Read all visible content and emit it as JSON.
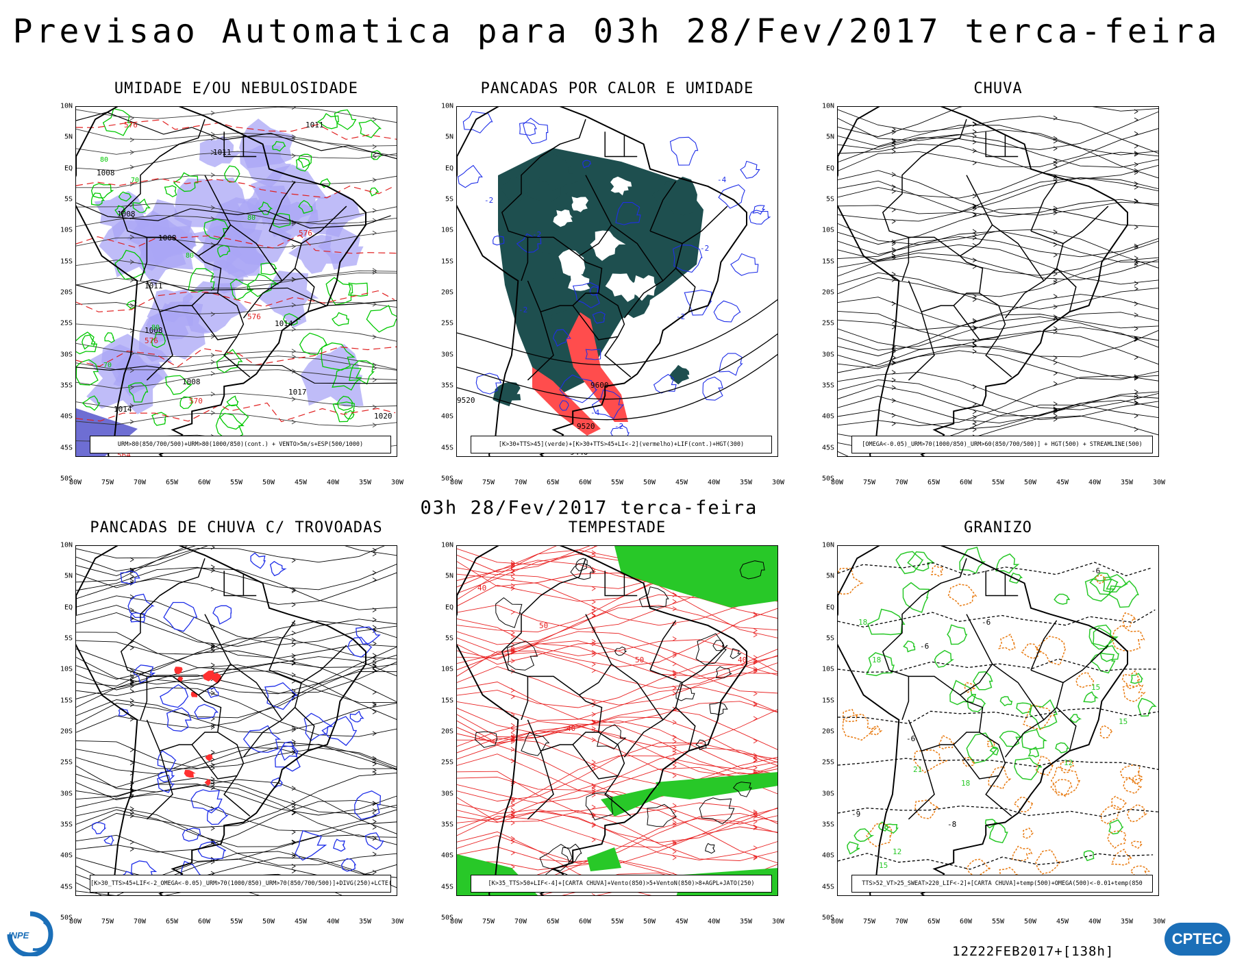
{
  "header": {
    "title": "Previsao Automatica  para 03h 28/Fev/2017 terca-feira",
    "mid_title": "03h 28/Fev/2017 terca-feira"
  },
  "axes": {
    "lat_labels": [
      "10N",
      "5N",
      "EQ",
      "5S",
      "10S",
      "15S",
      "20S",
      "25S",
      "30S",
      "35S",
      "40S",
      "45S",
      "50S"
    ],
    "lon_labels": [
      "80W",
      "75W",
      "70W",
      "65W",
      "60W",
      "55W",
      "50W",
      "45W",
      "40W",
      "35W",
      "30W"
    ]
  },
  "panels": [
    {
      "id": "umidade",
      "title": "UMIDADE E/OU NEBULOSIDADE",
      "legend": "URM>80(850/700/500)+URM>80(1000/850)(cont.) + VENTO>5m/s+ESP(500/1000)",
      "fill_color": "#a9a6f5",
      "contour_colors": [
        "#00c800",
        "#e02020",
        "#000000"
      ],
      "labels": [
        "576",
        "1008",
        "1011",
        "1014",
        "1020",
        "570",
        "564",
        "70",
        "80"
      ]
    },
    {
      "id": "pancadas-calor",
      "title": "PANCADAS POR CALOR E UMIDADE",
      "legend": "[K>30+TTS>45](verde)+[K>30+TTS>45+LI<-2](vermelho)+LIF(cont.)+HGT(300)",
      "fill_color": "#1e4f4f",
      "contour_colors": [
        "#1e2ee8",
        "#ff4040",
        "#000000"
      ],
      "labels": [
        "-2",
        "-4",
        "9520",
        "9600",
        "9440"
      ]
    },
    {
      "id": "chuva",
      "title": "CHUVA",
      "legend": "[OMEGA<-0.05)_URM>70(1000/850)_URM>60(850/700/500)] + HGT(500) + STREAMLINE(500)",
      "contour_colors": [
        "#000000"
      ],
      "labels": []
    },
    {
      "id": "trovoadas",
      "title": "PANCADAS DE CHUVA C/ TROVOADAS",
      "legend": "[K>30_TTS>45+LIF<-2_OMEGA<-0.05)_URM>70(1000/850)_URM>70(850/700/500)]+DIVG(250)+LCTE(250)",
      "contour_colors": [
        "#000000",
        "#1e2ee8",
        "#ff3030"
      ],
      "labels": []
    },
    {
      "id": "tempestade",
      "title": "TEMPESTADE",
      "legend": "[K>35_TTS>50+LIF<-4]+[CARTA CHUVA]+Vento(850)>5+VentoN(850)>8+AGPL+JATO(250)",
      "fill_color": "#28c828",
      "contour_colors": [
        "#e82020",
        "#000000"
      ],
      "labels": [
        "40",
        "50"
      ]
    },
    {
      "id": "granizo",
      "title": "GRANIZO",
      "legend": "TTS>52_VT>25_SWEAT>220_LIF<-2]+[CARTA CHUVA]+temp(500)+OMEGA(500)<-0.01+temp(850",
      "contour_colors": [
        "#28c828",
        "#e87a10",
        "#000000"
      ],
      "labels": [
        "-6",
        "-8",
        "-9",
        "-5",
        "12",
        "15",
        "18",
        "21"
      ]
    }
  ],
  "footer": {
    "run_label": "12Z22FEB2017+[138h]",
    "logo_left": "INPE",
    "logo_right": "CPTEC"
  }
}
